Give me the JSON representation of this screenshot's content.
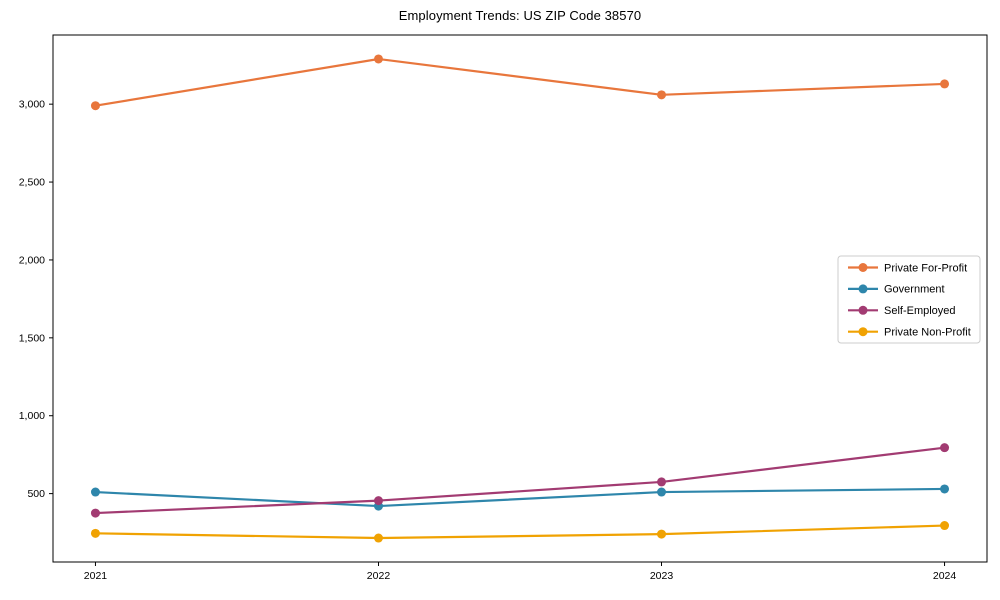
{
  "figure": {
    "title": "Employment Trends: US ZIP Code 38570"
  },
  "chart_data": {
    "type": "line",
    "title": "Employment Trends: US ZIP Code 38570",
    "xlabel": "",
    "ylabel": "",
    "categories": [
      "2021",
      "2022",
      "2023",
      "2024"
    ],
    "x": [
      2021,
      2022,
      2023,
      2024
    ],
    "series": [
      {
        "name": "Private For-Profit",
        "color": "#E8763C",
        "values": [
          2990,
          3290,
          3060,
          3130
        ]
      },
      {
        "name": "Government",
        "color": "#2E86AB",
        "values": [
          510,
          420,
          510,
          530
        ]
      },
      {
        "name": "Self-Employed",
        "color": "#A23B72",
        "values": [
          375,
          455,
          575,
          795
        ]
      },
      {
        "name": "Private Non-Profit",
        "color": "#F0A202",
        "values": [
          245,
          215,
          240,
          295
        ]
      }
    ],
    "ylim": [
      61,
      3444
    ],
    "yticks": [
      500,
      1000,
      1500,
      2000,
      2500,
      3000
    ],
    "ytick_labels": [
      "500",
      "1,000",
      "1,500",
      "2,000",
      "2,500",
      "3,000"
    ],
    "grid": false,
    "legend_position": "center-right",
    "marker": "circle",
    "axis_color": "#000000",
    "legend_border_color": "#cccccc",
    "background": "#ffffff"
  }
}
